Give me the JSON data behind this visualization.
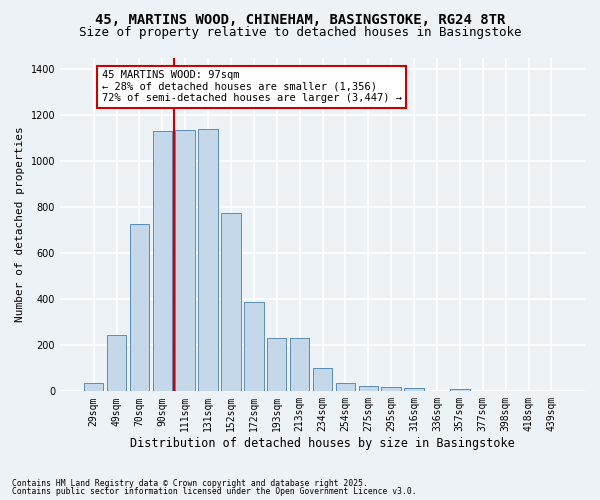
{
  "title1": "45, MARTINS WOOD, CHINEHAM, BASINGSTOKE, RG24 8TR",
  "title2": "Size of property relative to detached houses in Basingstoke",
  "xlabel": "Distribution of detached houses by size in Basingstoke",
  "ylabel": "Number of detached properties",
  "categories": [
    "29sqm",
    "49sqm",
    "70sqm",
    "90sqm",
    "111sqm",
    "131sqm",
    "152sqm",
    "172sqm",
    "193sqm",
    "213sqm",
    "234sqm",
    "254sqm",
    "275sqm",
    "295sqm",
    "316sqm",
    "336sqm",
    "357sqm",
    "377sqm",
    "398sqm",
    "418sqm",
    "439sqm"
  ],
  "values": [
    35,
    245,
    725,
    1130,
    1135,
    1140,
    775,
    390,
    230,
    230,
    100,
    35,
    25,
    20,
    15,
    0,
    10,
    0,
    0,
    0,
    0
  ],
  "bar_color": "#c5d8ea",
  "bar_edge_color": "#5b8db8",
  "property_line_x": 3.5,
  "annotation_line1": "45 MARTINS WOOD: 97sqm",
  "annotation_line2": "← 28% of detached houses are smaller (1,356)",
  "annotation_line3": "72% of semi-detached houses are larger (3,447) →",
  "annotation_box_facecolor": "#ffffff",
  "annotation_box_edge": "#cc0000",
  "property_line_color": "#cc0000",
  "footer1": "Contains HM Land Registry data © Crown copyright and database right 2025.",
  "footer2": "Contains public sector information licensed under the Open Government Licence v3.0.",
  "ylim_max": 1450,
  "background_color": "#edf2f7",
  "grid_color": "#ffffff",
  "title1_fontsize": 10,
  "title2_fontsize": 9,
  "ylabel_fontsize": 8,
  "xlabel_fontsize": 8.5,
  "tick_fontsize": 7,
  "ann_fontsize": 7.5,
  "footer_fontsize": 5.8
}
